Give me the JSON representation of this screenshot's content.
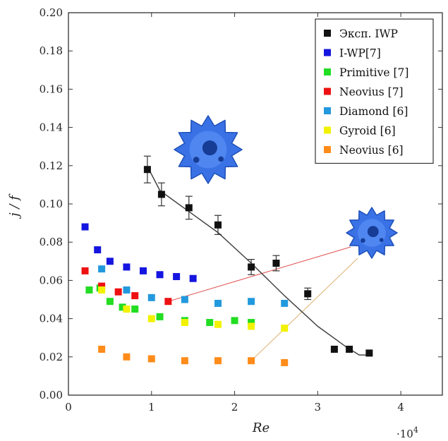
{
  "chart_data": {
    "type": "scatter",
    "xlabel": "Re",
    "ylabel": "j / f",
    "x_multiplier_label": "·10",
    "x_multiplier_exp": "4",
    "xlim": [
      0,
      4.5
    ],
    "ylim": [
      0,
      0.2
    ],
    "x_ticks": [
      0,
      1,
      2,
      3,
      4
    ],
    "x_tick_labels": [
      "0",
      "1",
      "2",
      "3",
      "4"
    ],
    "y_ticks": [
      0,
      0.02,
      0.04,
      0.06,
      0.08,
      0.1,
      0.12,
      0.14,
      0.16,
      0.18,
      0.2
    ],
    "y_tick_labels": [
      "0.00",
      "0.02",
      "0.04",
      "0.06",
      "0.08",
      "0.10",
      "0.12",
      "0.14",
      "0.16",
      "0.18",
      "0.20"
    ],
    "legend_position": "top-right",
    "series": [
      {
        "name": "Эксп. IWP",
        "color": "#111111",
        "points": [
          [
            0.95,
            0.118
          ],
          [
            1.12,
            0.105
          ],
          [
            1.45,
            0.098
          ],
          [
            1.8,
            0.089
          ],
          [
            2.2,
            0.067
          ],
          [
            2.5,
            0.069
          ],
          [
            2.88,
            0.053
          ],
          [
            3.2,
            0.024
          ],
          [
            3.38,
            0.024
          ],
          [
            3.62,
            0.022
          ]
        ],
        "errors": [
          0.007,
          0.006,
          0.006,
          0.005,
          0.004,
          0.004,
          0.003,
          0.0,
          0.0,
          0.0
        ],
        "trend_line": [
          [
            0.97,
            0.118
          ],
          [
            1.1,
            0.107
          ],
          [
            1.45,
            0.096
          ],
          [
            1.8,
            0.085
          ],
          [
            2.2,
            0.069
          ],
          [
            2.6,
            0.052
          ],
          [
            3.0,
            0.036
          ],
          [
            3.35,
            0.025
          ],
          [
            3.5,
            0.021
          ],
          [
            3.62,
            0.021
          ]
        ]
      },
      {
        "name": "I-WP[7]",
        "color": "#1515e0",
        "points": [
          [
            0.2,
            0.088
          ],
          [
            0.35,
            0.076
          ],
          [
            0.5,
            0.07
          ],
          [
            0.7,
            0.067
          ],
          [
            0.9,
            0.065
          ],
          [
            1.1,
            0.063
          ],
          [
            1.3,
            0.062
          ],
          [
            1.5,
            0.061
          ]
        ]
      },
      {
        "name": "Primitive [7]",
        "color": "#22dd22",
        "points": [
          [
            0.25,
            0.055
          ],
          [
            0.38,
            0.056
          ],
          [
            0.5,
            0.049
          ],
          [
            0.65,
            0.046
          ],
          [
            0.8,
            0.045
          ],
          [
            1.1,
            0.041
          ],
          [
            1.4,
            0.039
          ],
          [
            1.7,
            0.038
          ],
          [
            2.0,
            0.039
          ],
          [
            2.2,
            0.038
          ]
        ]
      },
      {
        "name": "Neovius [7]",
        "color": "#ee1111",
        "points": [
          [
            0.2,
            0.065
          ],
          [
            0.4,
            0.057
          ],
          [
            0.6,
            0.054
          ],
          [
            0.8,
            0.052
          ],
          [
            1.2,
            0.049
          ]
        ]
      },
      {
        "name": "Diamond [6]",
        "color": "#2299dd",
        "points": [
          [
            0.4,
            0.066
          ],
          [
            0.7,
            0.055
          ],
          [
            1.0,
            0.051
          ],
          [
            1.4,
            0.05
          ],
          [
            1.8,
            0.048
          ],
          [
            2.2,
            0.049
          ],
          [
            2.6,
            0.048
          ]
        ]
      },
      {
        "name": "Gyroid [6]",
        "color": "#f2f200",
        "points": [
          [
            0.4,
            0.055
          ],
          [
            0.7,
            0.045
          ],
          [
            1.0,
            0.04
          ],
          [
            1.4,
            0.038
          ],
          [
            1.8,
            0.037
          ],
          [
            2.2,
            0.036
          ],
          [
            2.6,
            0.035
          ]
        ]
      },
      {
        "name": "Neovius [6]",
        "color": "#ff8c1a",
        "points": [
          [
            0.4,
            0.024
          ],
          [
            0.7,
            0.02
          ],
          [
            1.0,
            0.019
          ],
          [
            1.4,
            0.018
          ],
          [
            1.8,
            0.018
          ],
          [
            2.2,
            0.018
          ],
          [
            2.6,
            0.017
          ]
        ]
      }
    ],
    "connector_lines": [
      {
        "color": "#e05050",
        "from": [
          1.2,
          0.049
        ],
        "to_inset": "right"
      },
      {
        "color": "#ddb070",
        "from": [
          2.2,
          0.018
        ],
        "to_inset": "right"
      }
    ],
    "inset_images": [
      {
        "name": "iwp-structure-top",
        "color": "#2f6fe0"
      },
      {
        "name": "neovius-structure-right",
        "color": "#2f6fe0"
      }
    ]
  }
}
